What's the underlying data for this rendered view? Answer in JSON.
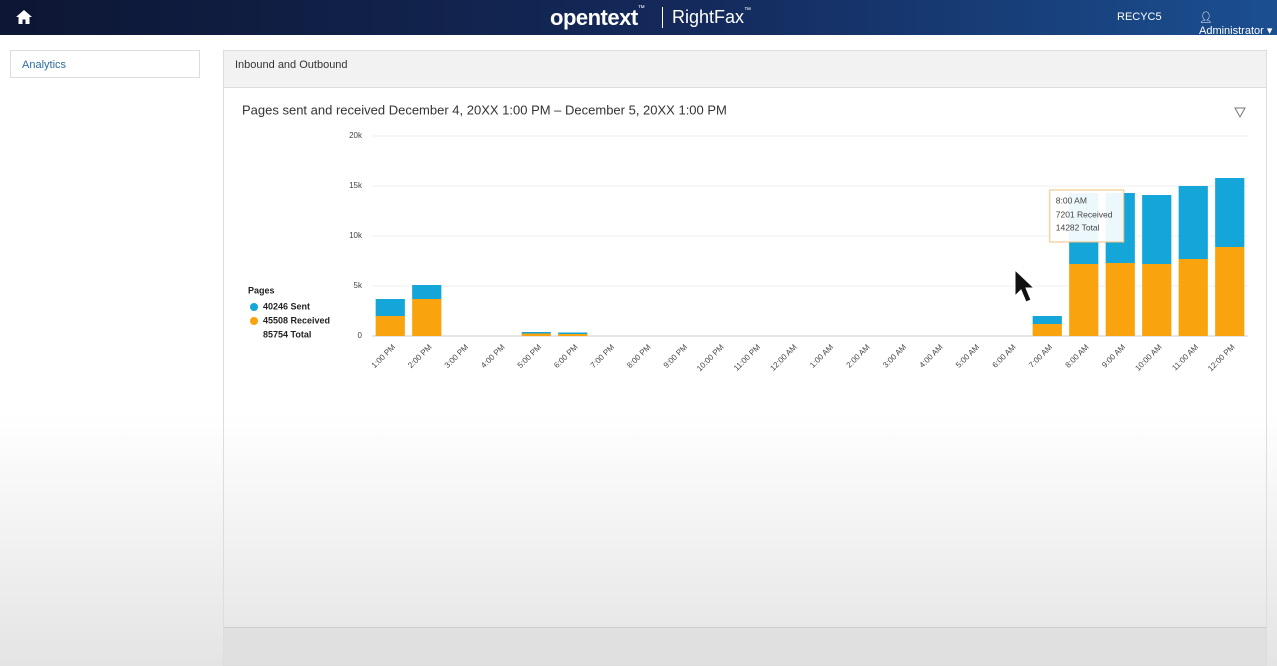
{
  "header": {
    "brand": "opentext",
    "trademark": "™",
    "product": "RightFax",
    "server": "RECYC5",
    "user": "Administrator"
  },
  "sidebar": {
    "items": [
      "Analytics"
    ]
  },
  "panel": {
    "title": "Inbound and Outbound"
  },
  "chart_data": {
    "type": "bar",
    "stacked": true,
    "title": "Pages sent and received December 4, 20XX 1:00 PM – December 5, 20XX 1:00 PM",
    "categories": [
      "1:00 PM",
      "2:00 PM",
      "3:00 PM",
      "4:00 PM",
      "5:00 PM",
      "6:00 PM",
      "7:00 PM",
      "8:00 PM",
      "9:00 PM",
      "10:00 PM",
      "11:00 PM",
      "12:00 AM",
      "1:00 AM",
      "2:00 AM",
      "3:00 AM",
      "4:00 AM",
      "5:00 AM",
      "6:00 AM",
      "7:00 AM",
      "8:00 AM",
      "9:00 AM",
      "10:00 AM",
      "11:00 AM",
      "12:00 PM"
    ],
    "series": [
      {
        "name": "40246 Sent",
        "color": "#14a5d9",
        "values": [
          1700,
          1400,
          0,
          0,
          150,
          150,
          0,
          0,
          0,
          0,
          0,
          0,
          0,
          0,
          0,
          0,
          0,
          0,
          800,
          7081,
          7000,
          6900,
          7300,
          6900
        ]
      },
      {
        "name": "45508 Received",
        "color": "#f9a30f",
        "values": [
          2000,
          3700,
          0,
          0,
          250,
          200,
          0,
          0,
          0,
          0,
          0,
          0,
          0,
          0,
          0,
          0,
          0,
          0,
          1200,
          7201,
          7300,
          7200,
          7700,
          8900
        ]
      }
    ],
    "ylim": [
      0,
      20000
    ],
    "yticks": [
      0,
      {
        "value": 5000,
        "label": "5k"
      },
      {
        "value": 10000,
        "label": "10k"
      },
      {
        "value": 15000,
        "label": "15k"
      },
      {
        "value": 20000,
        "label": "20k"
      }
    ],
    "grid": true,
    "legend": {
      "title": "Pages",
      "total": "85754 Total",
      "position": "left"
    },
    "tooltip": {
      "category": "8:00 AM",
      "lines": [
        "7201 Received",
        "14282 Total"
      ]
    }
  }
}
